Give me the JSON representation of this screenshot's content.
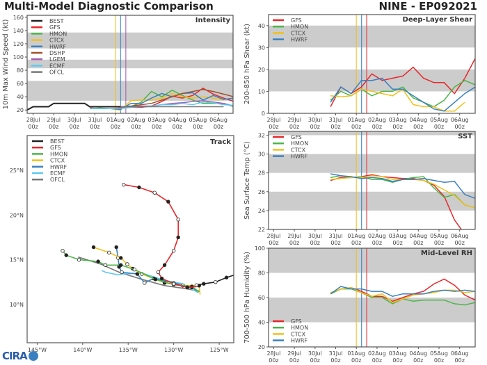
{
  "title": "Multi-Model Diagnostic Comparison",
  "storm": "NINE - EP092021",
  "logo_text": "CIRA",
  "colors": {
    "BEST": "#222222",
    "GFS": "#e8262a",
    "HMON": "#4cb548",
    "CTCX": "#f2c01a",
    "HWRF": "#3a80c0",
    "DSHP": "#a0522d",
    "LGEM": "#a35ab0",
    "ECMF": "#5ec8f0",
    "OFCL": "#777777",
    "band": "#cccccc"
  },
  "time_ticks": [
    [
      "28Jul",
      "00z"
    ],
    [
      "29Jul",
      "00z"
    ],
    [
      "30Jul",
      "00z"
    ],
    [
      "31Jul",
      "00z"
    ],
    [
      "01Aug",
      "00z"
    ],
    [
      "02Aug",
      "00z"
    ],
    [
      "03Aug",
      "00z"
    ],
    [
      "04Aug",
      "00z"
    ],
    [
      "05Aug",
      "00z"
    ],
    [
      "06Aug",
      "00z"
    ]
  ],
  "forecast_times": [
    "2021-07-30T18",
    "2021-07-31T06",
    "2021-07-31T18",
    "2021-08-01T06",
    "2021-08-01T18",
    "2021-08-02T06",
    "2021-08-02T18",
    "2021-08-03T06",
    "2021-08-03T18",
    "2021-08-04T06",
    "2021-08-04T18",
    "2021-08-05T06",
    "2021-08-05T18",
    "2021-08-06T06",
    "2021-08-06T18"
  ],
  "chart_data": [
    {
      "type": "line",
      "title": "Intensity",
      "ylabel": "10m Max Wind Speed (kt)",
      "ylim": [
        15,
        163
      ],
      "xlim": [
        "2021-07-27T17",
        "2021-08-06T17"
      ],
      "yticks": [
        20,
        40,
        60,
        80,
        100,
        120,
        140,
        160
      ],
      "bands": [
        [
          34,
          64
        ],
        [
          83,
          96
        ],
        [
          113,
          137
        ]
      ],
      "legend": "top-left",
      "vlines": [
        {
          "t": "2021-08-01T00",
          "color": "#f2c01a"
        },
        {
          "t": "2021-08-01T06",
          "color": "#3a80c0"
        },
        {
          "t": "2021-08-01T12",
          "color": "#a35ab0"
        }
      ],
      "series": [
        {
          "name": "BEST",
          "x": [
            "2021-07-27T17",
            "2021-07-28T00",
            "2021-07-28T18",
            "2021-07-29T00",
            "2021-07-30T12",
            "2021-07-30T18",
            "2021-08-01T06"
          ],
          "values": [
            20,
            25,
            25,
            30,
            30,
            25,
            25
          ]
        },
        {
          "name": "GFS",
          "values": [
            23,
            22,
            22,
            23,
            24,
            24,
            26,
            33,
            41,
            38,
            42,
            53,
            44,
            38,
            33
          ]
        },
        {
          "name": "HMON",
          "values": [
            22,
            23,
            22,
            22,
            25,
            32,
            48,
            40,
            50,
            42,
            35,
            30,
            30,
            30,
            25
          ]
        },
        {
          "name": "CTCX",
          "values": [
            22,
            22,
            22,
            20,
            34,
            35,
            35,
            38,
            45,
            40,
            38,
            40,
            38,
            35,
            null
          ]
        },
        {
          "name": "HWRF",
          "values": [
            22,
            22,
            22,
            21,
            30,
            30,
            38,
            45,
            40,
            45,
            46,
            35,
            42,
            36,
            38
          ]
        },
        {
          "name": "DSHP",
          "values": [
            null,
            null,
            null,
            25,
            26,
            28,
            30,
            35,
            40,
            45,
            48,
            51,
            48,
            44,
            40
          ]
        },
        {
          "name": "LGEM",
          "values": [
            null,
            null,
            null,
            25,
            25,
            26,
            26,
            28,
            30,
            31,
            33,
            34,
            32,
            30,
            26
          ]
        },
        {
          "name": "ECMF",
          "values": [
            22,
            22,
            22,
            22,
            24,
            25,
            26,
            28,
            28,
            30,
            28,
            32,
            31,
            28,
            27
          ]
        },
        {
          "name": "OFCL",
          "x": [
            "2021-08-01T06",
            "2021-08-06T06"
          ],
          "values": [
            25,
            25
          ]
        }
      ]
    },
    {
      "type": "line",
      "title": "Deep-Layer Shear",
      "ylabel": "200-850 hPa Shear (kt)",
      "ylim": [
        0,
        45
      ],
      "xlim": [
        "2021-07-27T18",
        "2021-08-06T18"
      ],
      "yticks": [
        0,
        10,
        20,
        30,
        40
      ],
      "bands": [
        [
          10,
          20
        ],
        [
          30,
          40
        ]
      ],
      "legend": "top-left",
      "vlines": [
        {
          "t": "2021-08-01T00",
          "color": "#f2c01a"
        },
        {
          "t": "2021-08-01T06",
          "color": "#3a80c0"
        },
        {
          "t": "2021-08-01T12",
          "color": "#e8262a"
        }
      ],
      "series": [
        {
          "name": "GFS",
          "values": [
            3,
            12,
            9,
            12,
            18,
            15,
            16,
            17,
            21,
            16,
            14,
            14,
            9,
            16,
            25
          ]
        },
        {
          "name": "HMON",
          "values": [
            6,
            10,
            8,
            11,
            8,
            10,
            10,
            12,
            7,
            5,
            3,
            6,
            12,
            15,
            13
          ]
        },
        {
          "name": "CTCX",
          "values": [
            8,
            7.5,
            8,
            11,
            10,
            9,
            8,
            11,
            4,
            3,
            3,
            1,
            1,
            5,
            null
          ]
        },
        {
          "name": "HWRF",
          "values": [
            5,
            12,
            9,
            15,
            15,
            16,
            11,
            11,
            8,
            5,
            2,
            1,
            5,
            9,
            12
          ]
        }
      ]
    },
    {
      "type": "line",
      "title": "SST",
      "ylabel": "Sea Surface Temp (°C)",
      "ylim": [
        22,
        32.4
      ],
      "xlim": [
        "2021-07-27T18",
        "2021-08-06T18"
      ],
      "yticks": [
        22,
        24,
        26,
        28,
        30,
        32
      ],
      "bands": [
        [
          24,
          26
        ],
        [
          28,
          30
        ],
        [
          32,
          33
        ]
      ],
      "legend": "top-left",
      "vlines": [
        {
          "t": "2021-08-01T00",
          "color": "#f2c01a"
        },
        {
          "t": "2021-08-01T06",
          "color": "#3a80c0"
        },
        {
          "t": "2021-08-01T12",
          "color": "#e8262a"
        }
      ],
      "series": [
        {
          "name": "GFS",
          "values": [
            27.2,
            27.5,
            27.5,
            27.6,
            27.8,
            27.6,
            27.5,
            27.4,
            27.4,
            27.2,
            26.7,
            25.5,
            23.0,
            21.5,
            21.0
          ]
        },
        {
          "name": "HMON",
          "values": [
            27.5,
            27.7,
            27.5,
            27.6,
            27.3,
            27.3,
            27.0,
            27.3,
            27.5,
            27.6,
            26.4,
            25.4,
            25.7,
            24.6,
            24.3
          ]
        },
        {
          "name": "CTCX",
          "values": [
            27.3,
            27.4,
            27.5,
            27.5,
            27.7,
            27.6,
            27.3,
            27.3,
            27.3,
            27.2,
            26.8,
            26.2,
            25.6,
            24.6,
            24.3
          ]
        },
        {
          "name": "HWRF",
          "values": [
            27.9,
            27.7,
            27.6,
            27.4,
            27.5,
            27.4,
            27.1,
            27.3,
            27.3,
            27.4,
            27.2,
            27.0,
            27.1,
            25.7,
            25.3
          ]
        }
      ]
    },
    {
      "type": "line",
      "title": "Mid-Level RH",
      "ylabel": "700-500 hPa Humidity (%)",
      "ylim": [
        20,
        100
      ],
      "xlim": [
        "2021-07-27T18",
        "2021-08-06T18"
      ],
      "yticks": [
        20,
        40,
        60,
        80,
        100
      ],
      "bands": [
        [
          40,
          60
        ],
        [
          80,
          100
        ]
      ],
      "legend": "bottom-left",
      "vlines": [
        {
          "t": "2021-08-01T00",
          "color": "#f2c01a"
        },
        {
          "t": "2021-08-01T06",
          "color": "#3a80c0"
        },
        {
          "t": "2021-08-01T12",
          "color": "#e8262a"
        }
      ],
      "series": [
        {
          "name": "GFS",
          "values": [
            63,
            67,
            68,
            65,
            61,
            61,
            57,
            60,
            63,
            65,
            71,
            75,
            70,
            62,
            58
          ]
        },
        {
          "name": "HMON",
          "values": [
            63,
            67,
            67,
            64,
            60,
            60,
            55,
            59,
            57,
            58,
            58,
            58,
            55,
            54,
            56
          ]
        },
        {
          "name": "CTCX",
          "values": [
            64,
            67,
            68,
            64,
            61,
            63,
            56,
            59,
            62,
            63,
            64,
            66,
            66,
            64,
            65
          ]
        },
        {
          "name": "HWRF",
          "values": [
            63,
            69,
            67,
            67,
            65,
            65,
            61,
            63,
            63,
            63,
            65,
            66,
            65,
            66,
            65
          ]
        }
      ]
    },
    {
      "type": "line",
      "title": "Track",
      "xlim": [
        -146.1,
        -123.4
      ],
      "ylim": [
        5.7,
        28.9
      ],
      "xticks": [
        [
          -145,
          "145°W"
        ],
        [
          -140,
          "140°W"
        ],
        [
          -135,
          "135°W"
        ],
        [
          -130,
          "130°W"
        ],
        [
          -125,
          "125°W"
        ]
      ],
      "yticks": [
        [
          10,
          "10°N"
        ],
        [
          15,
          "15°N"
        ],
        [
          20,
          "20°N"
        ],
        [
          25,
          "25°N"
        ]
      ],
      "legend": "top-left",
      "series": [
        {
          "name": "BEST",
          "lon": [
            -123.0,
            -124.2,
            -125.4,
            -126.7,
            -127.5
          ],
          "lat": [
            13.4,
            13.0,
            12.5,
            12.3,
            12.15
          ]
        },
        {
          "name": "GFS",
          "lon": [
            -127.3,
            -128.5,
            -130.0,
            -131.3,
            -131.7,
            -131.0,
            -130.0,
            -129.5,
            -129.5,
            -130.6,
            -132.1,
            -133.8,
            -135.5
          ],
          "lat": [
            12.0,
            11.9,
            12.3,
            12.9,
            13.6,
            14.4,
            16.0,
            17.5,
            19.5,
            21.5,
            22.5,
            23.1,
            23.4
          ]
        },
        {
          "name": "HMON",
          "lon": [
            -127.2,
            -128.0,
            -130.0,
            -132.0,
            -134.3,
            -135.8,
            -137.5,
            -138.3,
            -140.4,
            -141.8,
            -142.2
          ],
          "lat": [
            11.4,
            12.0,
            12.2,
            12.8,
            13.9,
            14.4,
            14.4,
            14.8,
            15.0,
            15.5,
            16.0
          ]
        },
        {
          "name": "CTCX",
          "lon": [
            -127.1,
            -127.2,
            -129.0,
            -131.0,
            -133.5,
            -134.5,
            -135.1,
            -135.8,
            -137.1,
            -138.8
          ],
          "lat": [
            11.1,
            12.1,
            12.1,
            12.4,
            13.4,
            14.0,
            14.5,
            15.2,
            15.8,
            16.4
          ]
        },
        {
          "name": "HWRF",
          "lon": [
            -127.2,
            -128.0,
            -130.0,
            -132.2,
            -133.2,
            -134.0,
            -135.7,
            -136.0,
            -136.1,
            -136.3
          ],
          "lat": [
            11.4,
            11.9,
            12.4,
            12.9,
            12.4,
            13.4,
            13.6,
            14.2,
            15.2,
            16.4
          ]
        },
        {
          "name": "ECMF",
          "lon": [
            -127.3,
            -129.0,
            -131.0,
            -133.5,
            -135.7,
            -136.1,
            -137.5,
            -137.9
          ],
          "lat": [
            11.3,
            12.3,
            12.7,
            13.5,
            13.4,
            13.3,
            13.6,
            13.8
          ]
        },
        {
          "name": "OFCL",
          "lon": [
            -127.2,
            -129.0,
            -131.0,
            -133.5,
            -136.0,
            -138.0,
            -140.5
          ],
          "lat": [
            11.5,
            11.8,
            12.1,
            12.8,
            13.6,
            14.5,
            15.3
          ]
        }
      ]
    }
  ]
}
